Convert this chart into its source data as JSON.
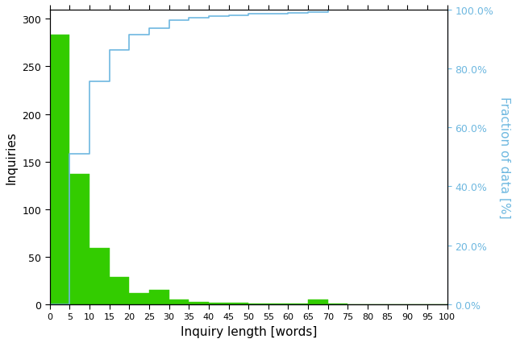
{
  "bar_edges": [
    0,
    5,
    10,
    15,
    20,
    25,
    30,
    35,
    40,
    45,
    50,
    55,
    60,
    65,
    70,
    75,
    80,
    85,
    90,
    95,
    100
  ],
  "bar_heights": [
    283,
    137,
    59,
    29,
    12,
    15,
    5,
    3,
    2,
    2,
    1,
    1,
    1,
    5,
    1,
    0,
    0,
    0,
    0,
    0
  ],
  "bar_color": "#33cc00",
  "cdf_color": "#6eb8e0",
  "xlabel": "Inquiry length [words]",
  "ylabel_left": "Inquiries",
  "ylabel_right": "Fraction of data [%]",
  "xlim": [
    0,
    100
  ],
  "ylim_left": [
    0,
    310
  ],
  "ylim_right": [
    0,
    100
  ],
  "xticks": [
    0,
    5,
    10,
    15,
    20,
    25,
    30,
    35,
    40,
    45,
    50,
    55,
    60,
    65,
    70,
    75,
    80,
    85,
    90,
    95,
    100
  ],
  "yticks_left": [
    0,
    50,
    100,
    150,
    200,
    250,
    300
  ],
  "yticks_right": [
    0,
    20,
    40,
    60,
    80,
    100
  ],
  "ytick_labels_right": [
    "0.0%",
    "20.0%",
    "40.0%",
    "60.0%",
    "80.0%",
    "100.0%"
  ],
  "background_color": "#ffffff",
  "figsize": [
    6.4,
    4.27
  ],
  "dpi": 100
}
